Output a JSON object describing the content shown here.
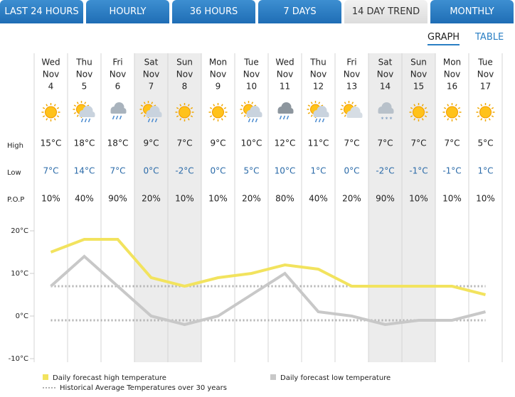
{
  "tabs": [
    "LAST 24 HOURS",
    "HOURLY",
    "36 HOURS",
    "7 DAYS",
    "14 DAY TREND",
    "MONTHLY"
  ],
  "view_toggle": [
    "GRAPH",
    "TABLE"
  ],
  "row_labels": {
    "high": "High",
    "low": "Low",
    "pop": "P.O.P"
  },
  "days": [
    {
      "day": "Wed",
      "month": "Nov",
      "date": "4",
      "high": "15°C",
      "low": "7°C",
      "pop": "10%"
    },
    {
      "day": "Thu",
      "month": "Nov",
      "date": "5",
      "high": "18°C",
      "low": "14°C",
      "pop": "40%"
    },
    {
      "day": "Fri",
      "month": "Nov",
      "date": "6",
      "high": "18°C",
      "low": "7°C",
      "pop": "90%"
    },
    {
      "day": "Sat",
      "month": "Nov",
      "date": "7",
      "high": "9°C",
      "low": "0°C",
      "pop": "20%"
    },
    {
      "day": "Sun",
      "month": "Nov",
      "date": "8",
      "high": "7°C",
      "low": "-2°C",
      "pop": "10%"
    },
    {
      "day": "Mon",
      "month": "Nov",
      "date": "9",
      "high": "9°C",
      "low": "0°C",
      "pop": "10%"
    },
    {
      "day": "Tue",
      "month": "Nov",
      "date": "10",
      "high": "10°C",
      "low": "5°C",
      "pop": "20%"
    },
    {
      "day": "Wed",
      "month": "Nov",
      "date": "11",
      "high": "12°C",
      "low": "10°C",
      "pop": "80%"
    },
    {
      "day": "Thu",
      "month": "Nov",
      "date": "12",
      "high": "11°C",
      "low": "1°C",
      "pop": "40%"
    },
    {
      "day": "Fri",
      "month": "Nov",
      "date": "13",
      "high": "7°C",
      "low": "0°C",
      "pop": "20%"
    },
    {
      "day": "Sat",
      "month": "Nov",
      "date": "14",
      "high": "7°C",
      "low": "-2°C",
      "pop": "90%"
    },
    {
      "day": "Sun",
      "month": "Nov",
      "date": "15",
      "high": "7°C",
      "low": "-1°C",
      "pop": "10%"
    },
    {
      "day": "Mon",
      "month": "Nov",
      "date": "16",
      "high": "7°C",
      "low": "-1°C",
      "pop": "10%"
    },
    {
      "day": "Tue",
      "month": "Nov",
      "date": "17",
      "high": "5°C",
      "low": "1°C",
      "pop": "10%"
    }
  ],
  "chart_data": {
    "type": "line",
    "series": [
      {
        "name": "Daily forecast high temperature",
        "color": "#f2e35e",
        "values": [
          15,
          18,
          18,
          9,
          7,
          9,
          10,
          12,
          11,
          7,
          7,
          7,
          7,
          5
        ]
      },
      {
        "name": "Daily forecast low temperature",
        "color": "#c8c8c8",
        "values": [
          7,
          14,
          7,
          0,
          -2,
          0,
          5,
          10,
          1,
          0,
          -2,
          -1,
          -1,
          1
        ]
      }
    ],
    "averages": {
      "name": "Historical Average Temperatures over 30 years",
      "color": "#b0b0b0",
      "values": [
        7,
        -1
      ]
    },
    "ylim": [
      -10,
      20
    ],
    "yticks": [
      {
        "value": 20,
        "label": "20°C"
      },
      {
        "value": 10,
        "label": "10°C"
      },
      {
        "value": 0,
        "label": "0°C"
      },
      {
        "value": -10,
        "label": "-10°C"
      }
    ]
  }
}
